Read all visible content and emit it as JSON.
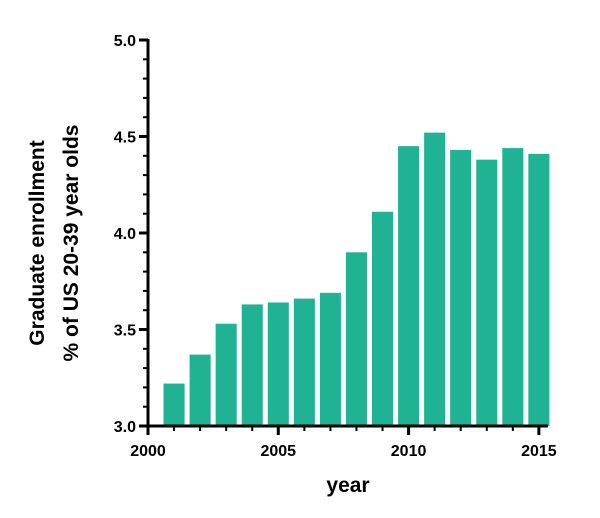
{
  "chart_data": {
    "type": "bar",
    "x": [
      2001,
      2002,
      2003,
      2004,
      2005,
      2006,
      2007,
      2008,
      2009,
      2010,
      2011,
      2012,
      2013,
      2014,
      2015
    ],
    "values": [
      3.22,
      3.37,
      3.53,
      3.63,
      3.64,
      3.66,
      3.69,
      3.9,
      4.11,
      4.45,
      4.52,
      4.43,
      4.38,
      4.44,
      4.41
    ],
    "xlabel": "year",
    "ylabel_lines": [
      "Graduate enrollment",
      "% of US 20-39 year olds"
    ],
    "xlim": [
      2000,
      2015.35
    ],
    "ylim": [
      3.0,
      5.0
    ],
    "xticks": [
      2000,
      2005,
      2010,
      2015
    ],
    "xtick_labels": [
      "2000",
      "2005",
      "2010",
      "2015"
    ],
    "yticks": [
      3.0,
      3.5,
      4.0,
      4.5,
      5.0
    ],
    "ytick_labels": [
      "3.0",
      "3.5",
      "4.0",
      "4.5",
      "5.0"
    ],
    "grid": false,
    "legend": "none",
    "bar_color": "#1fb393",
    "axis_color": "#000000"
  }
}
